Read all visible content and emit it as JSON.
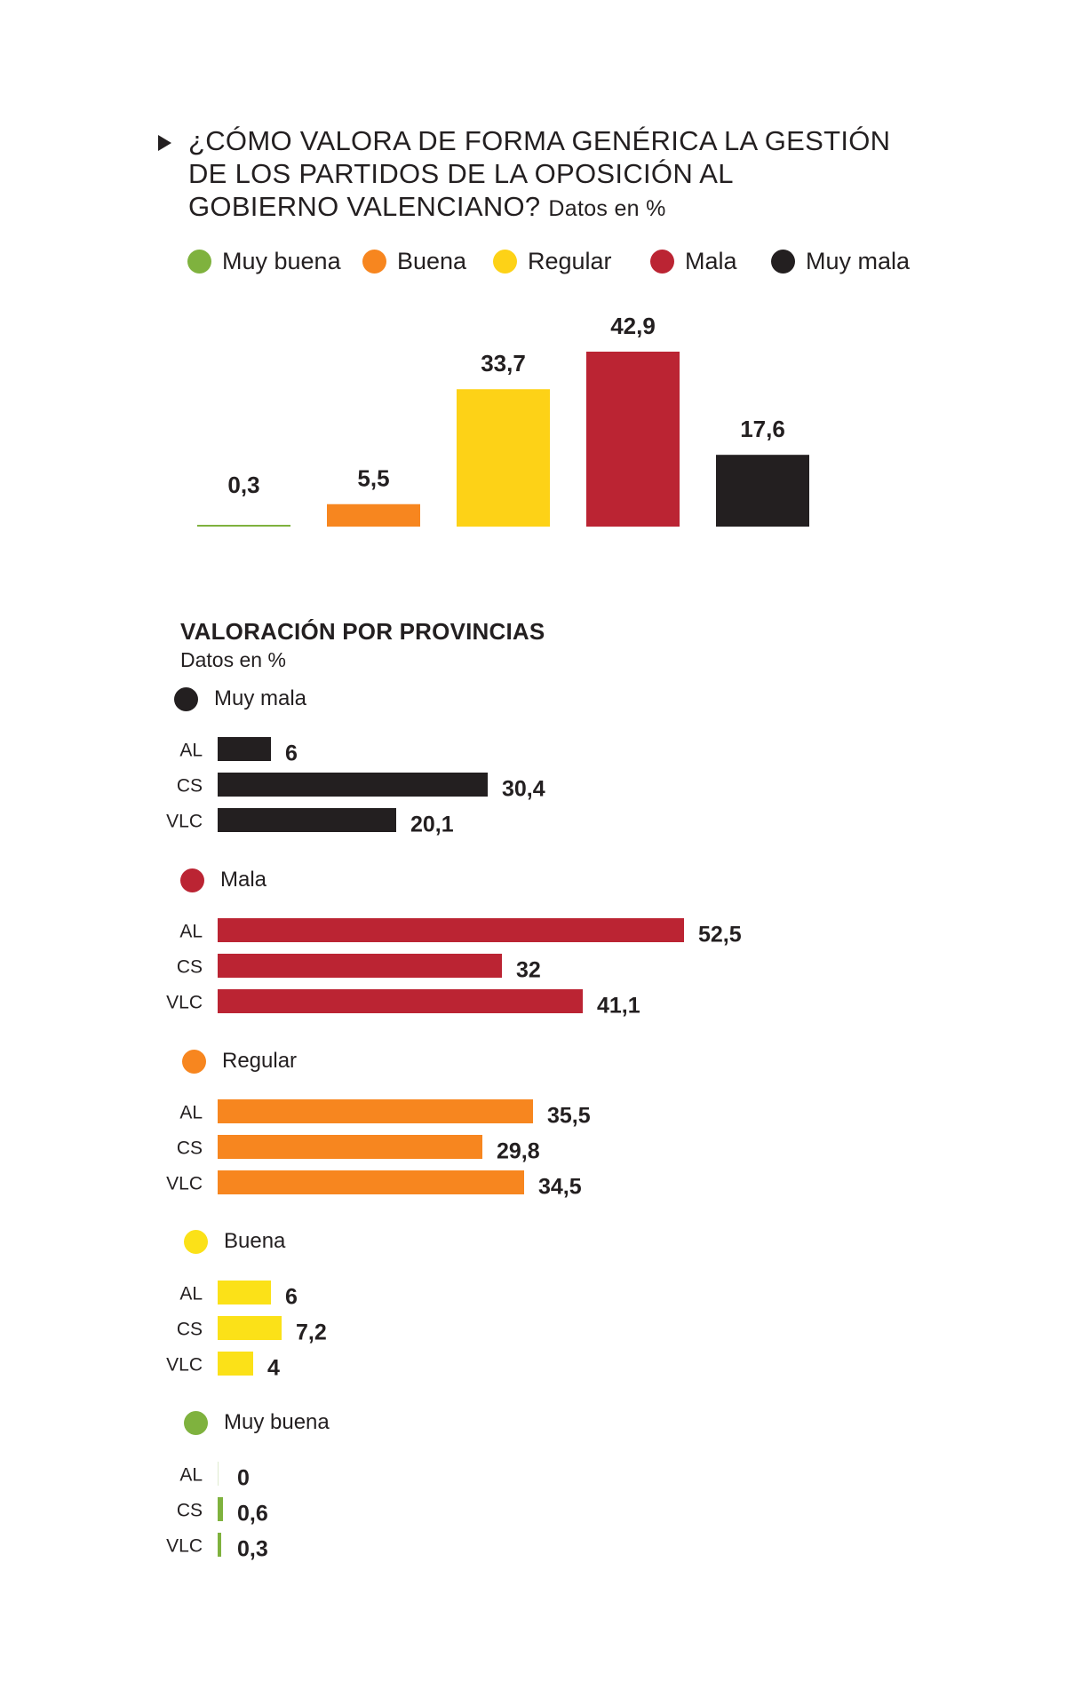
{
  "title": {
    "lines": [
      "¿CÓMO VALORA DE FORMA GENÉRICA LA GESTIÓN",
      "DE LOS PARTIDOS DE LA OPOSICIÓN AL",
      "GOBIERNO VALENCIANO?"
    ],
    "unit": "Datos en %"
  },
  "legend": [
    {
      "label": "Muy buena",
      "color": "#7fb23e"
    },
    {
      "label": "Buena",
      "color": "#f7861f"
    },
    {
      "label": "Regular",
      "color": "#fdd217"
    },
    {
      "label": "Mala",
      "color": "#bb2433"
    },
    {
      "label": "Muy mala",
      "color": "#231f20"
    }
  ],
  "chart_data": [
    {
      "type": "bar",
      "title": "¿CÓMO VALORA DE FORMA GENÉRICA LA GESTIÓN DE LOS PARTIDOS DE LA OPOSICIÓN AL GOBIERNO VALENCIANO?",
      "categories": [
        "Muy buena",
        "Buena",
        "Regular",
        "Mala",
        "Muy mala"
      ],
      "values": [
        0.3,
        5.5,
        33.7,
        42.9,
        17.6
      ],
      "value_labels": [
        "0,3",
        "5,5",
        "33,7",
        "42,9",
        "17,6"
      ],
      "colors": [
        "#7fb23e",
        "#f7861f",
        "#fdd217",
        "#bb2433",
        "#231f20"
      ],
      "ylabel": "Datos en %",
      "grid": false,
      "legend_position": "top"
    },
    {
      "type": "bar",
      "orientation": "horizontal",
      "title": "VALORACIÓN POR PROVINCIAS",
      "unit": "Datos en %",
      "categories": [
        "AL",
        "CS",
        "VLC"
      ],
      "groups": [
        {
          "name": "Muy mala",
          "color": "#231f20",
          "values": [
            6,
            30.4,
            20.1
          ],
          "value_labels": [
            "6",
            "30,4",
            "20,1"
          ]
        },
        {
          "name": "Mala",
          "color": "#bb2433",
          "values": [
            52.5,
            32,
            41.1
          ],
          "value_labels": [
            "52,5",
            "32",
            "41,1"
          ]
        },
        {
          "name": "Regular",
          "color": "#f7861f",
          "values": [
            35.5,
            29.8,
            34.5
          ],
          "value_labels": [
            "35,5",
            "29,8",
            "34,5"
          ]
        },
        {
          "name": "Buena",
          "color": "#fbe118",
          "values": [
            6,
            7.2,
            4
          ],
          "value_labels": [
            "6",
            "7,2",
            "4"
          ]
        },
        {
          "name": "Muy buena",
          "color": "#7fb23e",
          "values": [
            0,
            0.6,
            0.3
          ],
          "value_labels": [
            "0",
            "0,6",
            "0,3"
          ]
        }
      ],
      "grid": false
    }
  ]
}
